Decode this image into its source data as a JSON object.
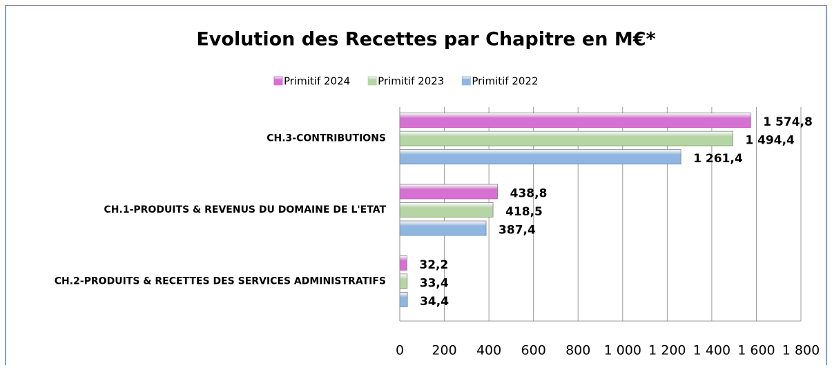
{
  "chart_data": {
    "type": "bar",
    "orientation": "horizontal",
    "title": "Evolution des Recettes par Chapitre en M€*",
    "categories": [
      "CH.3-CONTRIBUTIONS",
      "CH.1-PRODUITS & REVENUS DU DOMAINE DE L'ETAT",
      "CH.2-PRODUITS & RECETTES DES SERVICES ADMINISTRATIFS"
    ],
    "series": [
      {
        "name": "Primitif 2024",
        "color": "#d670d2",
        "values": [
          1574.8,
          438.8,
          32.2
        ],
        "value_labels": [
          "1 574,8",
          "438,8",
          "32,2"
        ]
      },
      {
        "name": "Primitif 2023",
        "color": "#b5d6a4",
        "values": [
          1494.4,
          418.5,
          33.4
        ],
        "value_labels": [
          "1 494,4",
          "418,5",
          "33,4"
        ]
      },
      {
        "name": "Primitif 2022",
        "color": "#8fb6e0",
        "values": [
          1261.4,
          387.4,
          34.4
        ],
        "value_labels": [
          "1 261,4",
          "387,4",
          "34,4"
        ]
      }
    ],
    "xlim": [
      0,
      1800
    ],
    "xticks": [
      0,
      200,
      400,
      600,
      800,
      {
        "value": 1000,
        "label": "1 000"
      },
      {
        "value": 1200,
        "label": "1 200"
      },
      {
        "value": 1400,
        "label": "1 400"
      },
      {
        "value": 1600,
        "label": "1 600"
      },
      {
        "value": 1800,
        "label": "1 800"
      }
    ],
    "grid": true,
    "legend": "top"
  }
}
